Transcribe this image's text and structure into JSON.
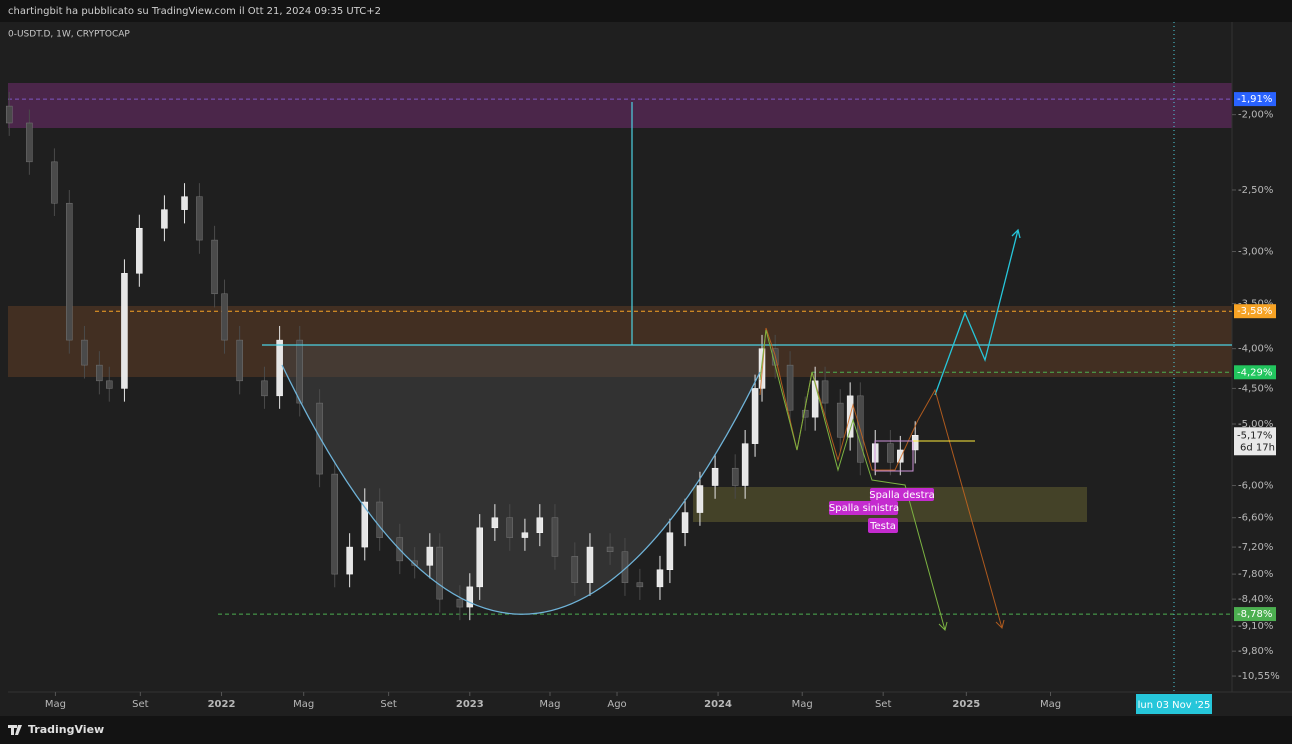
{
  "header": {
    "text": "chartingbit ha pubblicato su TradingView.com il Ott 21, 2024 09:35 UTC+2"
  },
  "chart_data": {
    "type": "candlestick",
    "title": "0-USDT.D, 1W, CRYPTOCAP",
    "log_scale": true,
    "up_color": "#e6e6e6",
    "down_color": "#4a4a4a",
    "x": [
      2021.145,
      2021.226,
      2021.327,
      2021.387,
      2021.448,
      2021.508,
      2021.548,
      2021.609,
      2021.669,
      2021.77,
      2021.851,
      2021.911,
      2021.972,
      2022.012,
      2022.073,
      2022.173,
      2022.234,
      2022.315,
      2022.395,
      2022.456,
      2022.516,
      2022.577,
      2022.637,
      2022.718,
      2022.778,
      2022.839,
      2022.879,
      2022.96,
      2023.0,
      2023.04,
      2023.101,
      2023.161,
      2023.222,
      2023.282,
      2023.343,
      2023.423,
      2023.484,
      2023.565,
      2023.625,
      2023.685,
      2023.766,
      2023.806,
      2023.867,
      2023.927,
      2023.988,
      2024.069,
      2024.109,
      2024.149,
      2024.177,
      2024.23,
      2024.29,
      2024.351,
      2024.391,
      2024.431,
      2024.492,
      2024.532,
      2024.573,
      2024.633,
      2024.694,
      2024.734,
      2024.794
    ],
    "open": [
      -1.95,
      -2.05,
      -2.3,
      -2.6,
      -3.9,
      -4.2,
      -4.4,
      -4.5,
      -3.2,
      -2.8,
      -2.65,
      -2.55,
      -2.9,
      -3.4,
      -3.9,
      -4.4,
      -4.6,
      -3.9,
      -4.7,
      -5.8,
      -7.8,
      -7.2,
      -6.3,
      -7.0,
      -7.5,
      -7.6,
      -7.2,
      -8.4,
      -8.6,
      -8.1,
      -6.8,
      -6.6,
      -7.0,
      -6.9,
      -6.6,
      -7.4,
      -8.0,
      -7.2,
      -7.3,
      -8.0,
      -8.1,
      -7.7,
      -6.9,
      -6.5,
      -6.0,
      -5.7,
      -6.0,
      -5.3,
      -4.5,
      -4.0,
      -4.2,
      -4.8,
      -4.9,
      -4.4,
      -4.7,
      -5.2,
      -4.6,
      -5.6,
      -5.3,
      -5.6,
      -5.4
    ],
    "high": [
      -1.87,
      -1.97,
      -2.21,
      -2.5,
      -3.74,
      -4.03,
      -4.22,
      -3.07,
      -2.69,
      -2.54,
      -2.45,
      -2.45,
      -2.78,
      -3.26,
      -3.74,
      -4.22,
      -3.74,
      -3.74,
      -4.51,
      -5.57,
      -6.91,
      -6.05,
      -6.05,
      -6.72,
      -7.2,
      -6.91,
      -6.91,
      -8.06,
      -7.78,
      -6.53,
      -6.34,
      -6.34,
      -6.62,
      -6.34,
      -6.34,
      -7.1,
      -6.91,
      -6.91,
      -7.01,
      -7.68,
      -7.39,
      -6.62,
      -6.24,
      -5.76,
      -5.47,
      -5.47,
      -5.09,
      -4.32,
      -3.84,
      -3.84,
      -4.03,
      -4.61,
      -4.22,
      -4.22,
      -4.51,
      -4.42,
      -4.42,
      -5.09,
      -5.09,
      -5.18,
      -4.96
    ],
    "low": [
      -2.13,
      -2.39,
      -2.7,
      -4.06,
      -4.37,
      -4.58,
      -4.68,
      -4.68,
      -3.33,
      -2.91,
      -2.76,
      -3.02,
      -3.54,
      -4.06,
      -4.58,
      -4.78,
      -4.78,
      -4.89,
      -6.03,
      -8.11,
      -8.11,
      -7.49,
      -7.28,
      -7.8,
      -7.9,
      -7.9,
      -8.74,
      -8.94,
      -8.94,
      -8.42,
      -7.07,
      -7.28,
      -7.28,
      -7.18,
      -7.7,
      -8.32,
      -8.32,
      -7.59,
      -8.32,
      -8.42,
      -8.42,
      -8.01,
      -7.18,
      -6.76,
      -6.24,
      -6.24,
      -6.24,
      -5.51,
      -4.68,
      -4.37,
      -4.99,
      -5.1,
      -5.1,
      -4.89,
      -5.41,
      -5.41,
      -5.82,
      -5.82,
      -5.82,
      -5.82,
      -5.62
    ],
    "close": [
      -2.05,
      -2.3,
      -2.6,
      -3.9,
      -4.2,
      -4.4,
      -4.5,
      -3.2,
      -2.8,
      -2.65,
      -2.55,
      -2.9,
      -3.4,
      -3.9,
      -4.4,
      -4.6,
      -3.9,
      -4.7,
      -5.8,
      -7.8,
      -7.2,
      -6.3,
      -7.0,
      -7.5,
      -7.6,
      -7.2,
      -8.4,
      -8.6,
      -8.1,
      -6.8,
      -6.6,
      -7.0,
      -6.9,
      -6.6,
      -7.4,
      -8.0,
      -7.2,
      -7.3,
      -8.0,
      -8.1,
      -7.7,
      -6.9,
      -6.5,
      -6.0,
      -5.7,
      -6.0,
      -5.3,
      -4.5,
      -4.0,
      -4.2,
      -4.8,
      -4.9,
      -4.4,
      -4.7,
      -5.2,
      -4.6,
      -5.6,
      -5.3,
      -5.6,
      -5.4,
      -5.17
    ],
    "xlim": [
      2021.14,
      2026.07
    ],
    "ylim": [
      -1.52,
      -11.06
    ],
    "xticks": [
      {
        "value": 2021.331,
        "label": "Mag"
      },
      {
        "value": 2021.673,
        "label": "Set"
      },
      2022,
      {
        "value": 2022.331,
        "label": "Mag"
      },
      {
        "value": 2022.673,
        "label": "Set"
      },
      2023,
      {
        "value": 2023.323,
        "label": "Mag"
      },
      {
        "value": 2023.593,
        "label": "Ago"
      },
      2024,
      {
        "value": 2024.339,
        "label": "Mag"
      },
      {
        "value": 2024.665,
        "label": "Set"
      },
      2025,
      {
        "value": 2025.339,
        "label": "Mag"
      }
    ],
    "yticks": [
      {
        "value": -2.0,
        "label": "-2,00%"
      },
      {
        "value": -2.5,
        "label": "-2,50%"
      },
      {
        "value": -3.0,
        "label": "-3,00%"
      },
      {
        "value": -3.5,
        "label": "-3,50%"
      },
      {
        "value": -4.0,
        "label": "-4,00%"
      },
      {
        "value": -4.5,
        "label": "-4,50%"
      },
      {
        "value": -5.0,
        "label": "-5,00%"
      },
      {
        "value": -6.0,
        "label": "-6,00%"
      },
      {
        "value": -6.6,
        "label": "-6,60%"
      },
      {
        "value": -7.2,
        "label": "-7,20%"
      },
      {
        "value": -7.8,
        "label": "-7,80%"
      },
      {
        "value": -8.4,
        "label": "-8,40%"
      },
      {
        "value": -9.1,
        "label": "-9,10%"
      },
      {
        "value": -9.8,
        "label": "-9,80%"
      },
      {
        "value": -10.55,
        "label": "-10,55%"
      }
    ],
    "price_lines": [
      {
        "value": -1.91,
        "label": "-1,91%",
        "color": "#7e57c2",
        "label_color": "#2962ff"
      },
      {
        "value": -3.58,
        "label": "-3,58%",
        "color": "#f7a325",
        "label_color": "#f7a325"
      },
      {
        "value": -4.29,
        "label": "-4,29%",
        "color": "#4caf50",
        "label_color": "#22c55e"
      },
      {
        "value": -8.78,
        "label": "-8,78%",
        "color": "#4caf50",
        "label_color": "#4caf50"
      }
    ],
    "current": {
      "value": -5.17,
      "label": "-5,17%",
      "countdown": "6d 17h"
    },
    "annotations": [
      "Spalla destra",
      "Spalla sinistra",
      "Testa"
    ],
    "crosshair_label": "lun 03 Nov '25"
  },
  "footer": {
    "logo": "TradingView"
  }
}
